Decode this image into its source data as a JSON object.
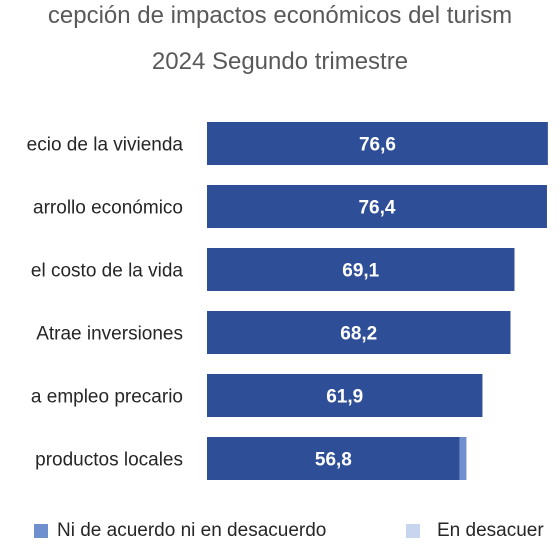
{
  "chart_data": {
    "type": "bar",
    "orientation": "horizontal",
    "stacked": true,
    "title": "cepción de impactos económicos del turism",
    "subtitle": "2024 Segundo trimestre",
    "categories": [
      "ecio de la vivienda",
      "arrollo económico",
      "el costo de la vida",
      "Atrae inversiones",
      "a empleo precario",
      " productos locales"
    ],
    "series": [
      {
        "name": "",
        "color": "#2e4e97",
        "values": [
          76.6,
          76.4,
          69.1,
          68.2,
          61.9,
          56.8
        ],
        "labels": [
          "76,6",
          "76,4",
          "69,1",
          "68,2",
          "61,9",
          "56,8"
        ]
      },
      {
        "name": "Ni de acuerdo ni en desacuerdo",
        "color": "#6f8fcf",
        "values": [
          null,
          null,
          null,
          null,
          null,
          1.5
        ]
      },
      {
        "name": "En desacuer",
        "color": "#c8d5ef",
        "values": [
          null,
          null,
          null,
          null,
          null,
          null
        ]
      }
    ],
    "grid": false,
    "legend": "bottom"
  }
}
